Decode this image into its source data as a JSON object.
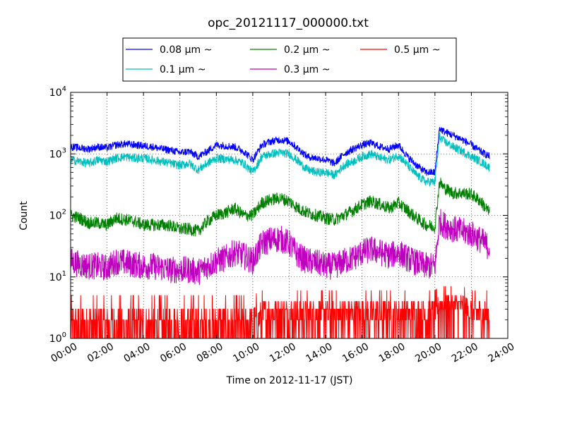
{
  "chart_data": {
    "type": "line",
    "title": "opc_20121117_000000.txt",
    "xlabel": "Time on 2012-11-17 (JST)",
    "ylabel": "Count",
    "y_scale": "log",
    "ylim": [
      1,
      10000
    ],
    "xlim_hours": [
      0,
      24
    ],
    "grid": true,
    "legend_position": "top-center",
    "x_tick_labels": [
      "00:00",
      "02:00",
      "04:00",
      "06:00",
      "08:00",
      "10:00",
      "12:00",
      "14:00",
      "16:00",
      "18:00",
      "20:00",
      "22:00",
      "24:00"
    ],
    "y_tick_labels": [
      {
        "base": "10",
        "exp": "0",
        "value": 1
      },
      {
        "base": "10",
        "exp": "1",
        "value": 10
      },
      {
        "base": "10",
        "exp": "2",
        "value": 100
      },
      {
        "base": "10",
        "exp": "3",
        "value": 1000
      },
      {
        "base": "10",
        "exp": "4",
        "value": 10000
      }
    ],
    "x_hours": [
      0,
      0.5,
      1,
      1.5,
      2,
      2.5,
      3,
      3.5,
      4,
      4.5,
      5,
      5.5,
      6,
      6.5,
      7,
      7.5,
      8,
      8.5,
      9,
      9.5,
      10,
      10.5,
      11,
      11.5,
      12,
      12.5,
      13,
      13.5,
      14,
      14.5,
      15,
      15.5,
      16,
      16.5,
      17,
      17.5,
      18,
      18.5,
      19,
      19.5,
      20,
      20.25,
      20.5,
      21,
      21.5,
      22,
      22.5,
      23
    ],
    "series": [
      {
        "name": "0.08 μm ~",
        "color": "#0000ff",
        "noise": 0.06,
        "values": [
          1300,
          1250,
          1200,
          1300,
          1250,
          1400,
          1450,
          1400,
          1350,
          1300,
          1200,
          1150,
          1050,
          1100,
          900,
          1100,
          1400,
          1350,
          1300,
          1100,
          800,
          1400,
          1600,
          1700,
          1600,
          1200,
          900,
          850,
          800,
          700,
          1000,
          1200,
          1400,
          1500,
          1300,
          1200,
          1400,
          900,
          650,
          500,
          500,
          2600,
          2300,
          2000,
          1700,
          1400,
          1100,
          900
        ]
      },
      {
        "name": "0.1 μm ~",
        "color": "#00bfbf",
        "noise": 0.07,
        "values": [
          800,
          750,
          700,
          800,
          750,
          850,
          900,
          850,
          850,
          800,
          750,
          700,
          650,
          700,
          550,
          700,
          850,
          820,
          800,
          700,
          500,
          900,
          1000,
          1050,
          1000,
          750,
          550,
          500,
          500,
          450,
          650,
          750,
          900,
          1000,
          850,
          800,
          950,
          650,
          450,
          350,
          350,
          1900,
          1600,
          1300,
          1100,
          900,
          750,
          600
        ]
      },
      {
        "name": "0.2 μm ~",
        "color": "#008000",
        "noise": 0.1,
        "values": [
          100,
          90,
          75,
          75,
          70,
          90,
          85,
          80,
          70,
          70,
          70,
          68,
          60,
          60,
          55,
          80,
          100,
          110,
          130,
          100,
          100,
          160,
          180,
          190,
          170,
          130,
          110,
          100,
          90,
          85,
          100,
          120,
          150,
          170,
          150,
          130,
          160,
          120,
          90,
          70,
          65,
          350,
          280,
          230,
          230,
          220,
          170,
          110
        ]
      },
      {
        "name": "0.3 μm ~",
        "color": "#bf00bf",
        "noise": 0.22,
        "values": [
          18,
          16,
          15,
          15,
          14,
          18,
          17,
          16,
          15,
          15,
          14,
          13,
          13,
          13,
          12,
          15,
          18,
          20,
          25,
          22,
          18,
          35,
          40,
          42,
          35,
          22,
          18,
          17,
          15,
          15,
          18,
          20,
          25,
          28,
          25,
          22,
          25,
          20,
          17,
          15,
          15,
          80,
          70,
          60,
          55,
          50,
          40,
          30
        ]
      },
      {
        "name": "0.5 μm ~",
        "color": "#ff0000",
        "noise": 0,
        "values": [
          2,
          2,
          2,
          2,
          2,
          2,
          2,
          2,
          2,
          2,
          2,
          2,
          2,
          2,
          2,
          2,
          2,
          2,
          2,
          2,
          2,
          3,
          3,
          3,
          3,
          3,
          3,
          3,
          3,
          3,
          3,
          3,
          3,
          3,
          3,
          3,
          3,
          3,
          3,
          3,
          3,
          4,
          4,
          4,
          4,
          3,
          3,
          3
        ]
      }
    ]
  }
}
